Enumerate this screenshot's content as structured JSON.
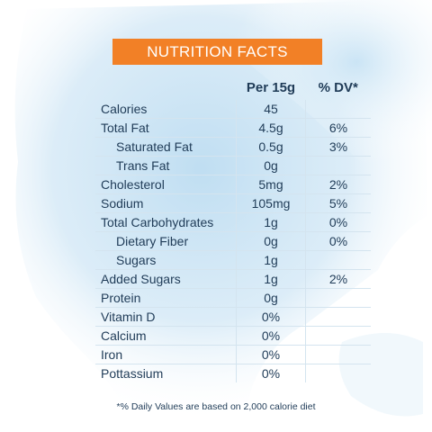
{
  "header": {
    "title": "NUTRITION FACTS"
  },
  "columns": {
    "per": "Per 15g",
    "dv": "% DV*"
  },
  "rows": [
    {
      "name": "Calories",
      "per": "45",
      "dv": "",
      "indent": false
    },
    {
      "name": "Total Fat",
      "per": "4.5g",
      "dv": "6%",
      "indent": false
    },
    {
      "name": "Saturated Fat",
      "per": "0.5g",
      "dv": "3%",
      "indent": true
    },
    {
      "name": "Trans Fat",
      "per": "0g",
      "dv": "",
      "indent": true
    },
    {
      "name": "Cholesterol",
      "per": "5mg",
      "dv": "2%",
      "indent": false
    },
    {
      "name": "Sodium",
      "per": "105mg",
      "dv": "5%",
      "indent": false
    },
    {
      "name": "Total Carbohydrates",
      "per": "1g",
      "dv": "0%",
      "indent": false
    },
    {
      "name": "Dietary Fiber",
      "per": "0g",
      "dv": "0%",
      "indent": true
    },
    {
      "name": "Sugars",
      "per": "1g",
      "dv": "",
      "indent": true
    },
    {
      "name": "Added Sugars",
      "per": "1g",
      "dv": "2%",
      "indent": false
    },
    {
      "name": "Protein",
      "per": "0g",
      "dv": "",
      "indent": false
    },
    {
      "name": "Vitamin D",
      "per": "0%",
      "dv": "",
      "indent": false
    },
    {
      "name": "Calcium",
      "per": "0%",
      "dv": "",
      "indent": false
    },
    {
      "name": "Iron",
      "per": "0%",
      "dv": "",
      "indent": false
    },
    {
      "name": "Pottassium",
      "per": "0%",
      "dv": "",
      "indent": false
    }
  ],
  "footnote": "*% Daily Values are based on 2,000 calorie diet",
  "colors": {
    "header_bg": "#f28026",
    "text": "#1f3b57",
    "watercolor": "#cfe6f5"
  }
}
